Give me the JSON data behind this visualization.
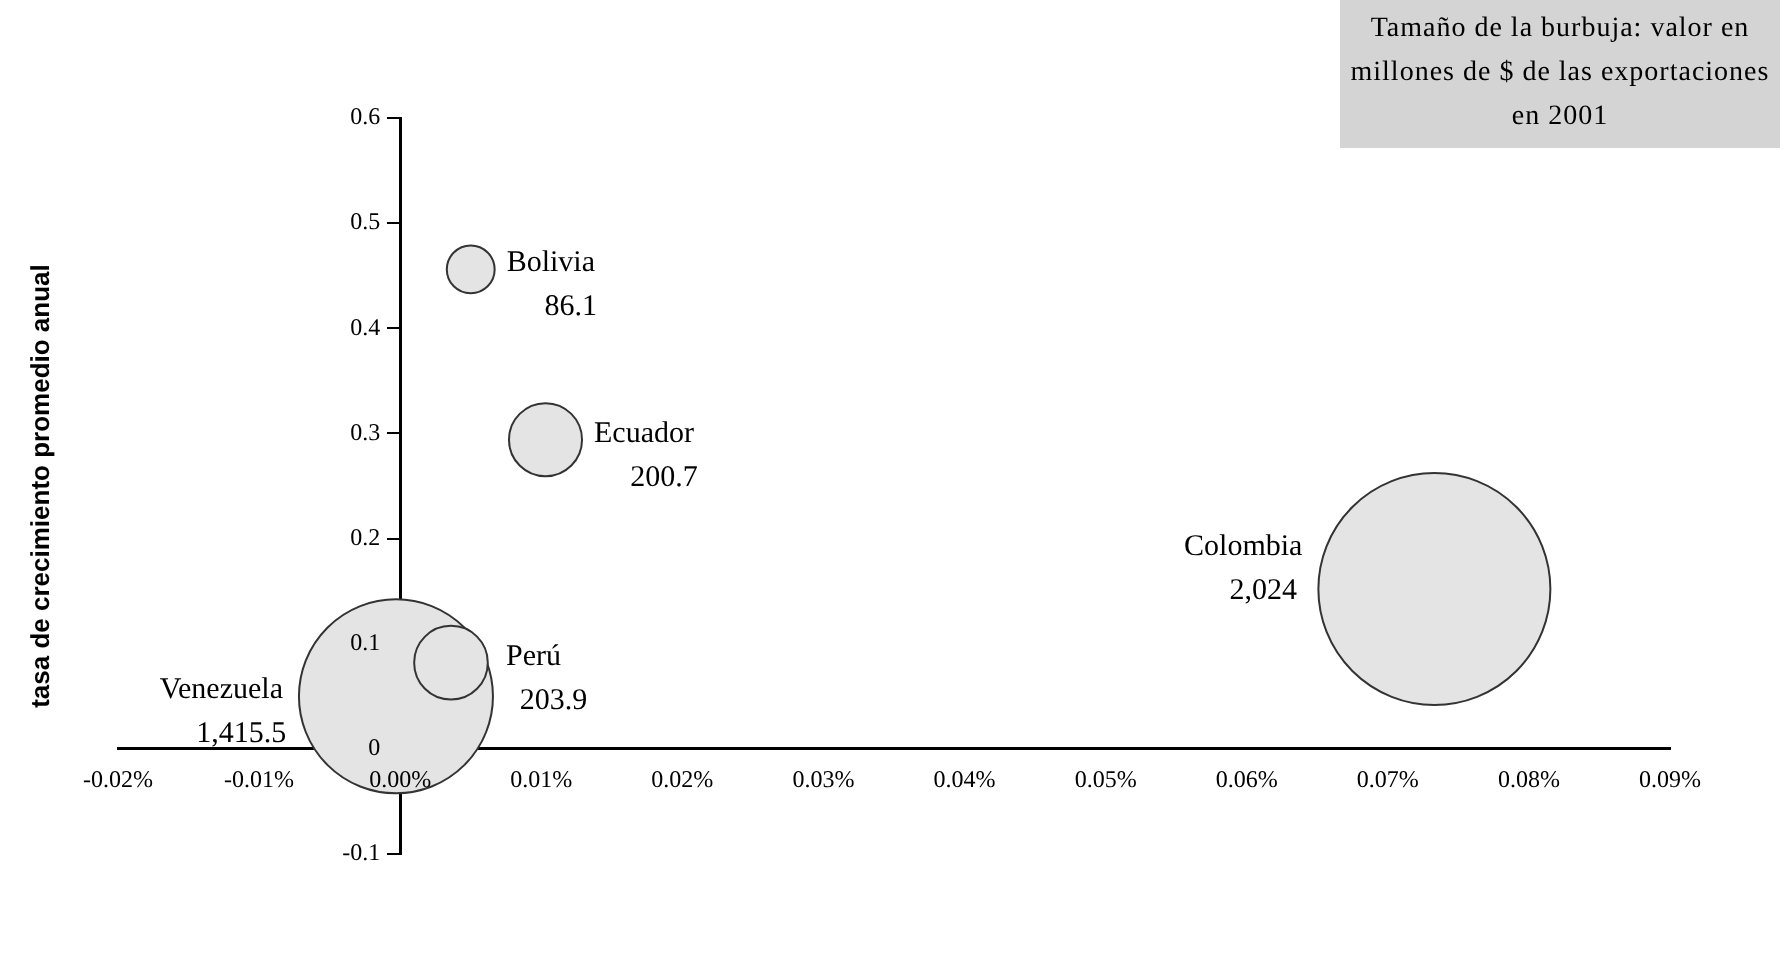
{
  "chart_data": {
    "type": "bubble",
    "ylabel": "tasa de crecimiento promedio anual",
    "annotations": [
      "Tamaño de la burbuja: valor en millones de $ de las exportaciones en 2001"
    ],
    "xlim": [
      -0.02,
      0.09
    ],
    "xticks": [
      {
        "value": -0.02,
        "label": "-0.02%"
      },
      {
        "value": -0.01,
        "label": "-0.01%"
      },
      {
        "value": 0,
        "label": "0.00%"
      },
      {
        "value": 0.01,
        "label": "0.01%"
      },
      {
        "value": 0.02,
        "label": "0.02%"
      },
      {
        "value": 0.03,
        "label": "0.03%"
      },
      {
        "value": 0.04,
        "label": "0.04%"
      },
      {
        "value": 0.05,
        "label": "0.05%"
      },
      {
        "value": 0.06,
        "label": "0.06%"
      },
      {
        "value": 0.07,
        "label": "0.07%"
      },
      {
        "value": 0.08,
        "label": "0.08%"
      },
      {
        "value": 0.09,
        "label": "0.09%"
      }
    ],
    "ylim": [
      -0.1,
      0.6
    ],
    "yticks": [
      -0.1,
      0,
      0.1,
      0.2,
      0.3,
      0.4,
      0.5,
      0.6
    ],
    "grid": false,
    "legend": false,
    "series": [
      {
        "name": "Bolivia",
        "color": "#e4e4e4",
        "x": [
          0.005
        ],
        "values": [
          0.456
        ],
        "sizes": [
          86.1
        ],
        "value_labels": [
          "86.1"
        ]
      },
      {
        "name": "Ecuador",
        "color": "#e4e4e4",
        "x": [
          0.0103
        ],
        "values": [
          0.294
        ],
        "sizes": [
          200.7
        ],
        "value_labels": [
          "200.7"
        ]
      },
      {
        "name": "Colombia",
        "color": "#e4e4e4",
        "x": [
          0.0733
        ],
        "values": [
          0.152
        ],
        "sizes": [
          2024
        ],
        "value_labels": [
          "2,024"
        ]
      },
      {
        "name": "Perú",
        "color": "#e4e4e4",
        "x": [
          0.0036
        ],
        "values": [
          0.082
        ],
        "sizes": [
          203.9
        ],
        "value_labels": [
          "203.9"
        ]
      },
      {
        "name": "Venezuela",
        "color": "#e4e4e4",
        "x": [
          -0.0003
        ],
        "values": [
          0.05
        ],
        "sizes": [
          1415.5
        ],
        "value_labels": [
          "1,415.5"
        ]
      }
    ]
  }
}
